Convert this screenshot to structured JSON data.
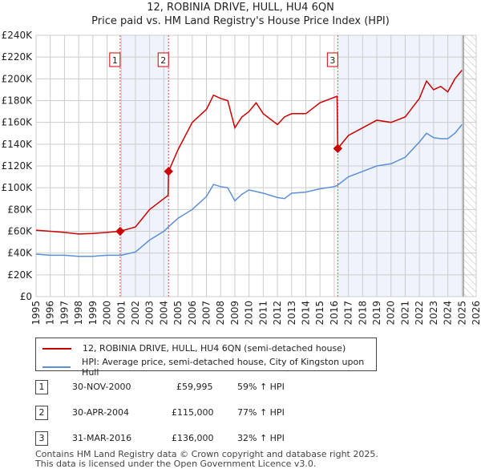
{
  "chart_data": {
    "type": "line",
    "title": "12, ROBINIA DRIVE, HULL, HU4 6QN",
    "subtitle": "Price paid vs. HM Land Registry's House Price Index (HPI)",
    "xlim": [
      1995,
      2026
    ],
    "ylim": [
      0,
      240000
    ],
    "x_ticks": [
      "1995",
      "1996",
      "1997",
      "1998",
      "1999",
      "2000",
      "2001",
      "2002",
      "2003",
      "2004",
      "2005",
      "2006",
      "2007",
      "2008",
      "2009",
      "2010",
      "2011",
      "2012",
      "2013",
      "2014",
      "2015",
      "2016",
      "2017",
      "2018",
      "2019",
      "2020",
      "2021",
      "2022",
      "2023",
      "2024",
      "2025",
      "2026"
    ],
    "y_ticks": [
      "£0",
      "£20K",
      "£40K",
      "£60K",
      "£80K",
      "£100K",
      "£120K",
      "£140K",
      "£160K",
      "£180K",
      "£200K",
      "£220K",
      "£240K"
    ],
    "grid": true,
    "series": [
      {
        "name": "12, ROBINIA DRIVE, HULL, HU4 6QN (semi-detached house)",
        "color": "#cc0000",
        "x": [
          1995,
          1996,
          1997,
          1998,
          1999,
          2000,
          2000.92,
          2002,
          2003,
          2004.3,
          2004.33,
          2005,
          2006,
          2007,
          2007.5,
          2008,
          2008.5,
          2009,
          2009.5,
          2010,
          2010.5,
          2011,
          2012,
          2012.5,
          2013,
          2014,
          2015,
          2016.2,
          2016.25,
          2017,
          2018,
          2019,
          2020,
          2021,
          2022,
          2022.5,
          2023,
          2023.5,
          2024,
          2024.5,
          2025
        ],
        "y": [
          61000,
          60000,
          59000,
          57500,
          58000,
          59000,
          59995,
          64000,
          80000,
          93000,
          115000,
          135000,
          160000,
          172000,
          185000,
          182000,
          180000,
          155000,
          165000,
          170000,
          178000,
          168000,
          158000,
          165000,
          168000,
          168000,
          178000,
          184000,
          136000,
          148000,
          155000,
          162000,
          160000,
          165000,
          182000,
          198000,
          190000,
          193000,
          188000,
          200000,
          208000
        ]
      },
      {
        "name": "HPI: Average price, semi-detached house, City of Kingston upon Hull",
        "color": "#5b8fd6",
        "x": [
          1995,
          1996,
          1997,
          1998,
          1999,
          2000,
          2001,
          2002,
          2003,
          2004,
          2004.4,
          2005,
          2006,
          2007,
          2007.5,
          2008,
          2008.5,
          2009,
          2009.5,
          2010,
          2011,
          2012,
          2012.5,
          2013,
          2014,
          2015,
          2016,
          2016.2,
          2017,
          2018,
          2019,
          2020,
          2021,
          2022,
          2022.5,
          2023,
          2023.5,
          2024,
          2024.5,
          2025
        ],
        "y": [
          39000,
          38000,
          38000,
          37000,
          37000,
          38000,
          38000,
          41000,
          52000,
          60000,
          65000,
          72000,
          80000,
          92000,
          103000,
          101000,
          100000,
          88000,
          94000,
          98000,
          95000,
          91000,
          90000,
          95000,
          96000,
          99000,
          101000,
          102000,
          110000,
          115000,
          120000,
          122000,
          128000,
          142000,
          150000,
          146000,
          145000,
          145000,
          150000,
          158000
        ]
      }
    ],
    "sales": [
      {
        "label": "1",
        "x": 2000.92,
        "y": 59995
      },
      {
        "label": "2",
        "x": 2004.33,
        "y": 115000
      },
      {
        "label": "3",
        "x": 2016.25,
        "y": 136000
      }
    ],
    "shaded_ranges": [
      [
        2000.92,
        2004.33
      ],
      [
        2016.25,
        2025.1
      ]
    ],
    "forecast_hatch_from": 2025.1
  },
  "legend": {
    "property": "12, ROBINIA DRIVE, HULL, HU4 6QN (semi-detached house)",
    "hpi": "HPI: Average price, semi-detached house, City of Kingston upon Hull"
  },
  "transactions": [
    {
      "num": "1",
      "date": "30-NOV-2000",
      "price": "£59,995",
      "hpi": "59% ↑ HPI"
    },
    {
      "num": "2",
      "date": "30-APR-2004",
      "price": "£115,000",
      "hpi": "77% ↑ HPI"
    },
    {
      "num": "3",
      "date": "31-MAR-2016",
      "price": "£136,000",
      "hpi": "32% ↑ HPI"
    }
  ],
  "footer": {
    "line1": "Contains HM Land Registry data © Crown copyright and database right 2025.",
    "line2": "This data is licensed under the Open Government Licence v3.0."
  }
}
